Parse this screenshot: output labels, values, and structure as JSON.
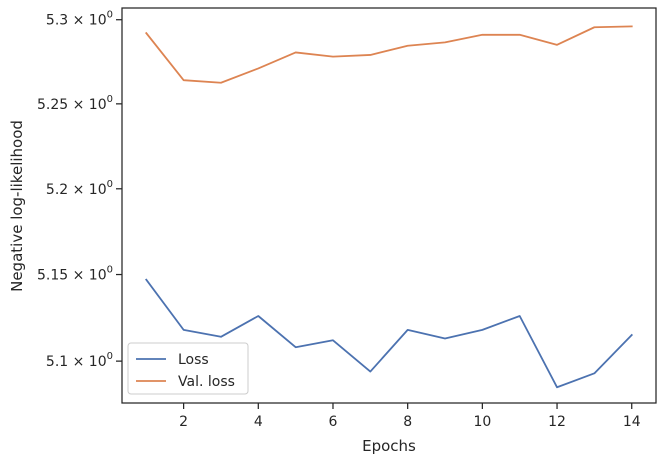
{
  "chart_data": {
    "type": "line",
    "xlabel": "Epochs",
    "ylabel": "Negative log-likelihood",
    "yscale": "log",
    "xlim": [
      0.35,
      14.65
    ],
    "ylim": [
      5.076,
      5.307
    ],
    "xticks": [
      2,
      4,
      6,
      8,
      10,
      12,
      14
    ],
    "yticks": [
      {
        "value": 5.1,
        "mantissa": "5.1",
        "label": "5.1 × 10^0"
      },
      {
        "value": 5.15,
        "mantissa": "5.15",
        "label": "5.15 × 10^0"
      },
      {
        "value": 5.2,
        "mantissa": "5.2",
        "label": "5.2 × 10^0"
      },
      {
        "value": 5.25,
        "mantissa": "5.25",
        "label": "5.25 × 10^0"
      },
      {
        "value": 5.3,
        "mantissa": "5.3",
        "label": "5.3 × 10^0"
      }
    ],
    "x": [
      1,
      2,
      3,
      4,
      5,
      6,
      7,
      8,
      9,
      10,
      11,
      12,
      13,
      14
    ],
    "series": [
      {
        "name": "Loss",
        "color": "#4c72b0",
        "values": [
          5.147,
          5.118,
          5.114,
          5.126,
          5.108,
          5.112,
          5.094,
          5.118,
          5.113,
          5.118,
          5.126,
          5.085,
          5.093,
          5.115
        ]
      },
      {
        "name": "Val. loss",
        "color": "#dd8452",
        "values": [
          5.292,
          5.264,
          5.2625,
          5.271,
          5.2805,
          5.278,
          5.279,
          5.2845,
          5.2865,
          5.291,
          5.291,
          5.285,
          5.2955,
          5.296
        ]
      }
    ],
    "grid": false,
    "legend": "bottom-left"
  }
}
